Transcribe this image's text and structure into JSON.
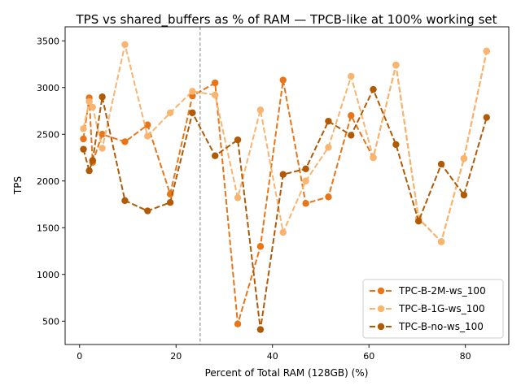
{
  "chart_data": {
    "type": "line",
    "title": "TPS vs shared_buffers as % of RAM — TPCB-like at 100% working set",
    "xlabel": "Percent of Total RAM (128GB) (%)",
    "ylabel": "TPS",
    "xlim": [
      -3,
      89
    ],
    "ylim": [
      250,
      3650
    ],
    "xticks": [
      0,
      20,
      40,
      60,
      80
    ],
    "yticks": [
      500,
      1000,
      1500,
      2000,
      2500,
      3000,
      3500
    ],
    "reference_line_x": 25,
    "grid": false,
    "legend_position": "lower-right",
    "series": [
      {
        "name": "TPC-B-2M-ws_100",
        "color": "#e8751a",
        "x": [
          0.8,
          2.0,
          2.7,
          4.7,
          9.4,
          14.1,
          18.8,
          23.4,
          28.1,
          32.8,
          37.5,
          42.2,
          46.9,
          51.6,
          56.3,
          60.9,
          65.6,
          70.3,
          75.0,
          79.7,
          84.4
        ],
        "values": [
          2450,
          2890,
          2200,
          2500,
          2420,
          2600,
          1860,
          2910,
          3050,
          470,
          1300,
          3080,
          1760,
          1830,
          2700,
          2250,
          3240,
          1600,
          1350,
          2240,
          3390
        ]
      },
      {
        "name": "TPC-B-1G-ws_100",
        "color": "#f9b470",
        "x": [
          0.8,
          2.0,
          2.7,
          4.7,
          9.4,
          14.1,
          18.8,
          23.4,
          28.1,
          32.8,
          37.5,
          42.2,
          46.9,
          51.6,
          56.3,
          60.9,
          65.6,
          70.3,
          75.0,
          79.7,
          84.4
        ],
        "values": [
          2560,
          2850,
          2790,
          2350,
          3460,
          2480,
          2730,
          2960,
          2920,
          1820,
          2760,
          1450,
          2000,
          2360,
          3120,
          2250,
          3240,
          1600,
          1350,
          2240,
          3390
        ]
      },
      {
        "name": "TPC-B-no-ws_100",
        "color": "#b05a06",
        "x": [
          0.8,
          2.0,
          2.7,
          4.7,
          9.4,
          14.1,
          18.8,
          23.4,
          28.1,
          32.8,
          37.5,
          42.2,
          46.9,
          51.6,
          56.3,
          60.9,
          65.6,
          70.3,
          75.0,
          79.7,
          84.4
        ],
        "values": [
          2340,
          2110,
          2220,
          2900,
          1790,
          1680,
          1770,
          2730,
          2270,
          2440,
          410,
          2070,
          2130,
          2640,
          2490,
          2980,
          2390,
          1570,
          2180,
          1850,
          2680
        ]
      }
    ]
  }
}
